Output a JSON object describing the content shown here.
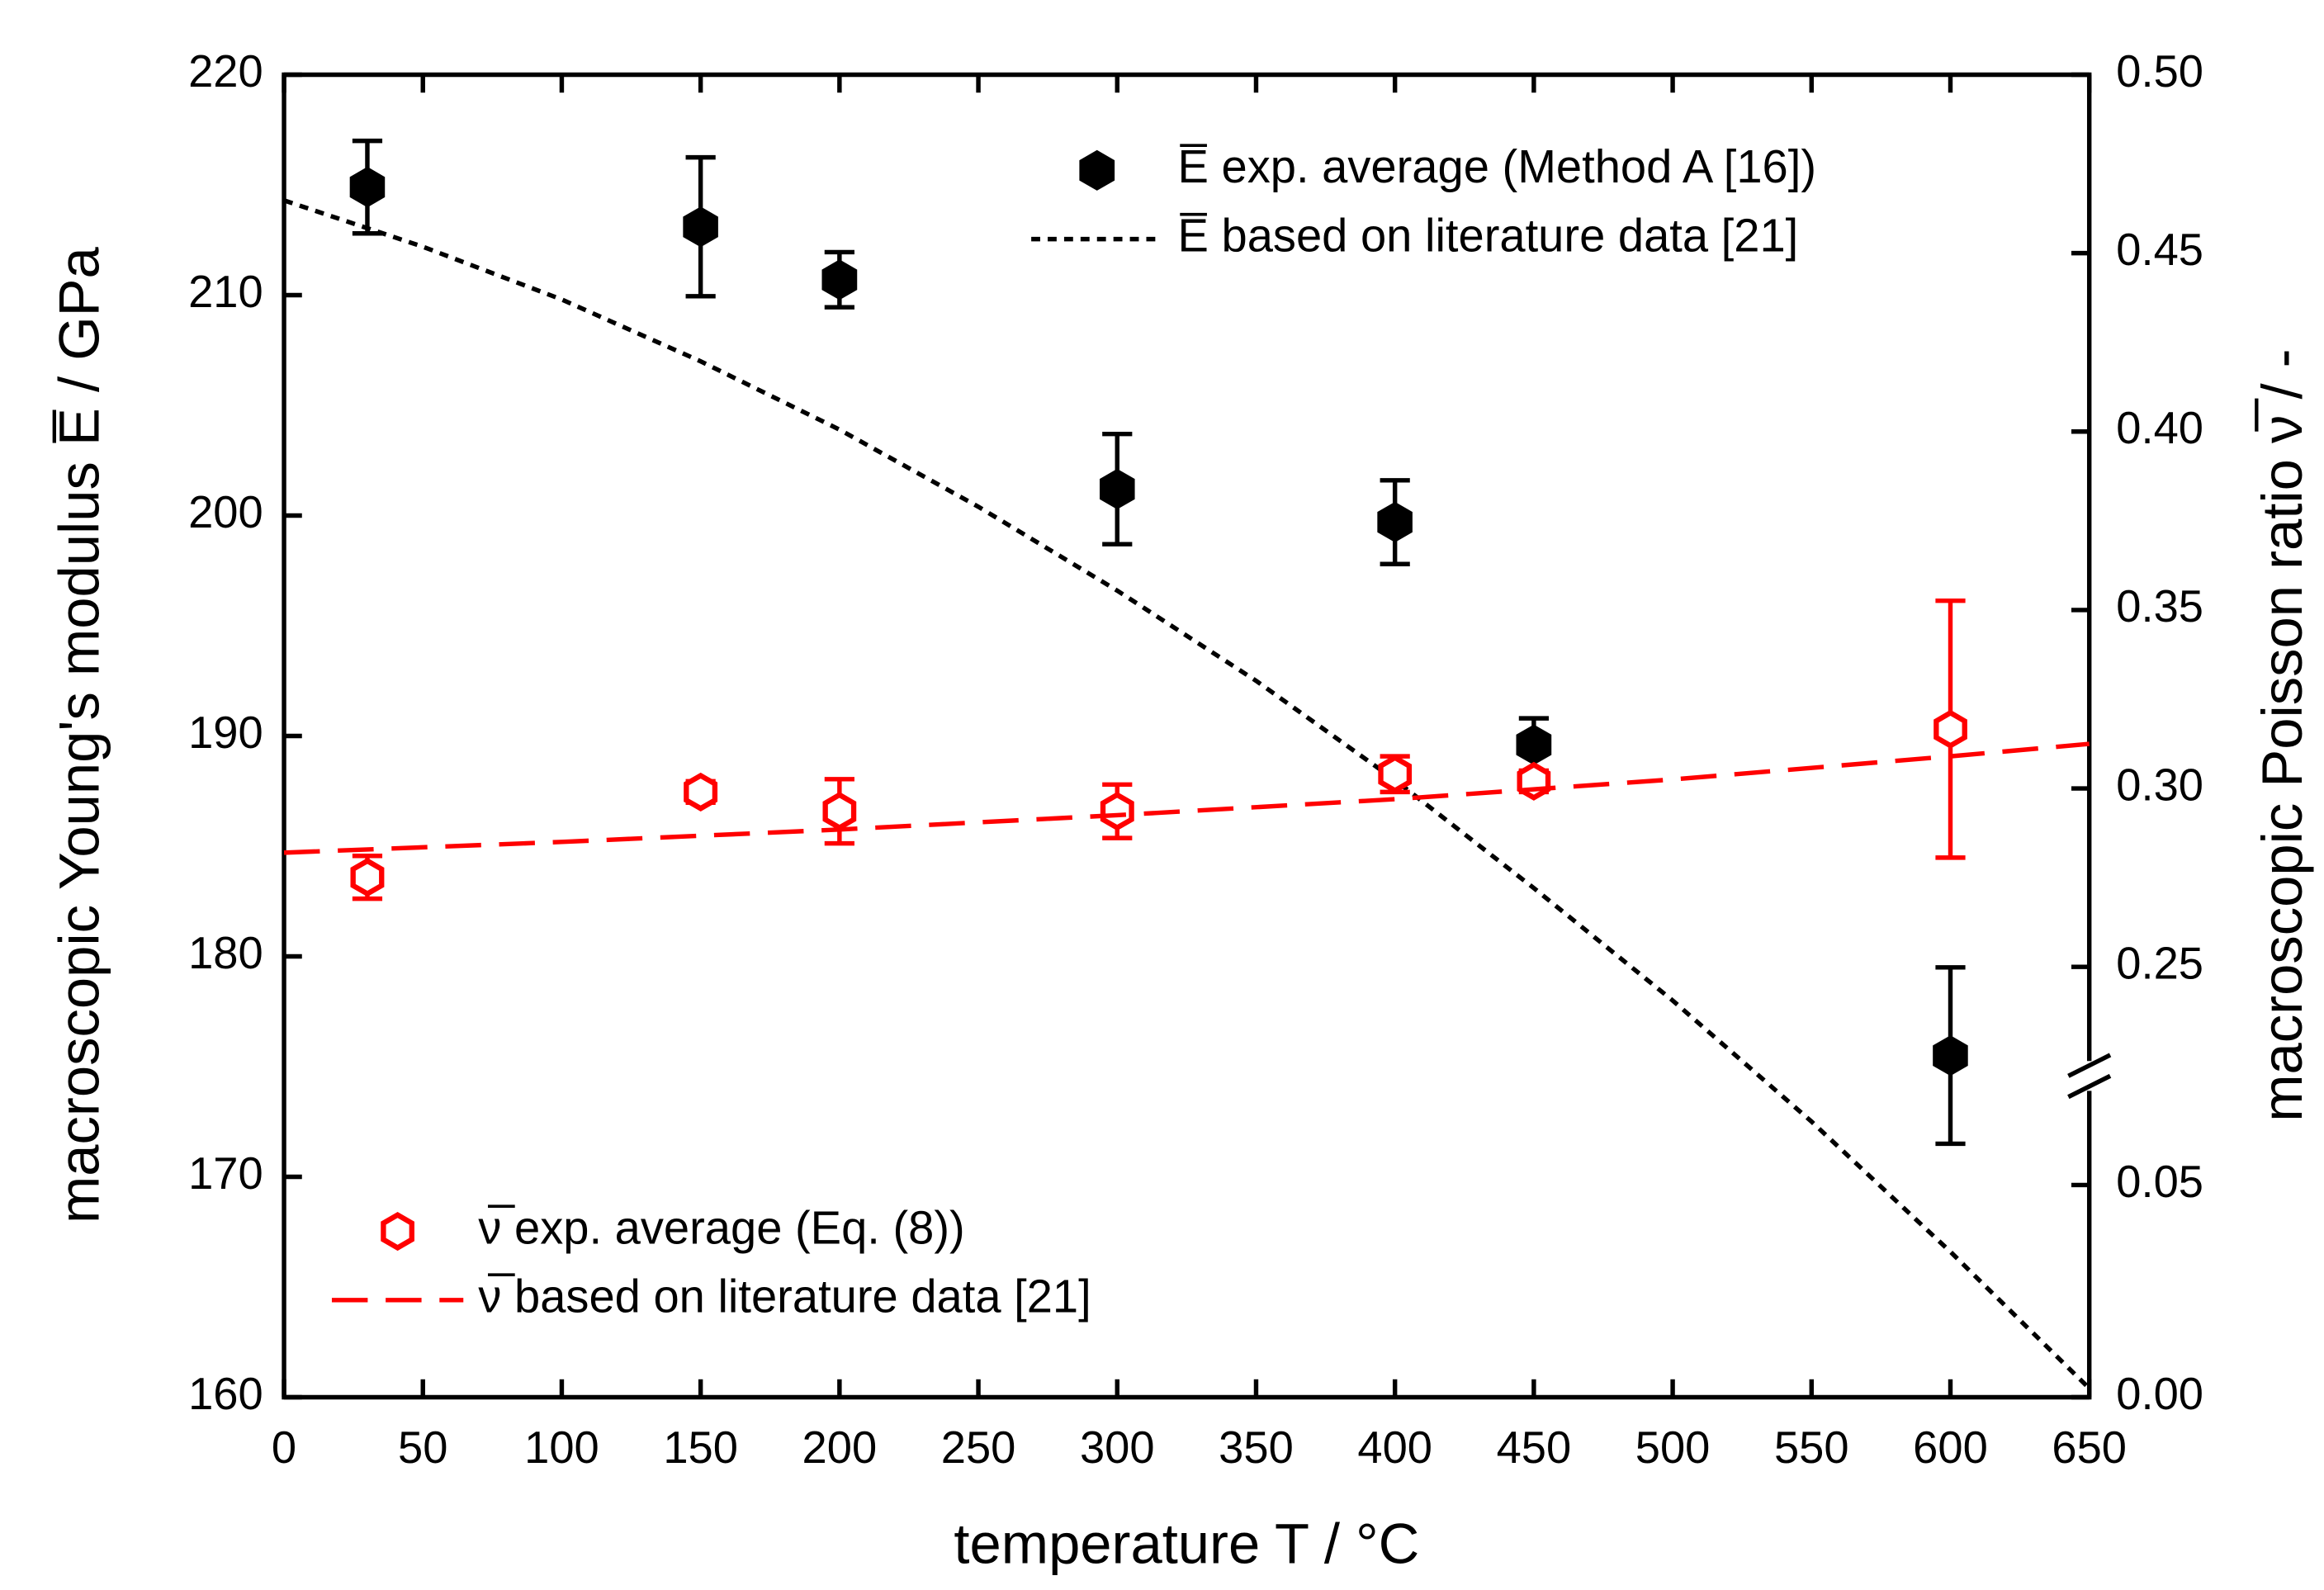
{
  "chart_data": {
    "type": "scatter",
    "xlabel": "temperature T / °C",
    "ylabel": "macroscopic Young's modulus E̅ / GPa",
    "y2label": "macroscopic Poisson ratio ν̅ / -",
    "xlim": [
      0,
      650
    ],
    "xticks": [
      0,
      50,
      100,
      150,
      200,
      250,
      300,
      350,
      400,
      450,
      500,
      550,
      600,
      650
    ],
    "ylim": [
      160,
      220
    ],
    "yticks": [
      160,
      170,
      180,
      190,
      200,
      210,
      220
    ],
    "y2lim": [
      0,
      0.5
    ],
    "y2break": [
      0.05,
      0.25
    ],
    "y2ticks": [
      {
        "value": 0,
        "label": "0.00"
      },
      {
        "value": 0.05,
        "label": "0.05"
      },
      {
        "value": 0.25,
        "label": "0.25"
      },
      {
        "value": 0.3,
        "label": "0.30"
      },
      {
        "value": 0.35,
        "label": "0.35"
      },
      {
        "value": 0.4,
        "label": "0.40"
      },
      {
        "value": 0.45,
        "label": "0.45"
      },
      {
        "value": 0.5,
        "label": "0.50"
      }
    ],
    "series": [
      {
        "name": "E̅ exp. average (Method A [16])",
        "kind": "points",
        "marker": "filled-hexagon",
        "color": "#000000",
        "legend": "upper right",
        "x": [
          30,
          150,
          200,
          300,
          400,
          450,
          600
        ],
        "values": [
          214.9,
          213.1,
          210.7,
          201.2,
          199.7,
          189.6,
          175.5
        ],
        "errors": [
          2.1,
          3.15,
          1.25,
          2.5,
          1.9,
          1.2,
          4.0
        ]
      },
      {
        "name": "E̅ based on literature data [21]",
        "kind": "line",
        "dash": "dotted",
        "color": "#000000",
        "legend": "upper right",
        "x": [
          0,
          50,
          100,
          150,
          200,
          250,
          300,
          350,
          400,
          450,
          500,
          550,
          600,
          650
        ],
        "values": [
          214.3,
          212.2,
          209.8,
          207.0,
          203.9,
          200.4,
          196.6,
          192.5,
          188.0,
          183.1,
          178.0,
          172.5,
          166.6,
          160.4
        ]
      },
      {
        "name": "ν̅ exp. average (Eq. (8))",
        "kind": "points",
        "marker": "open-hexagon",
        "color": "#ff0000",
        "legend": "lower left",
        "axis": "y2",
        "x": [
          30,
          150,
          200,
          300,
          400,
          450,
          600
        ],
        "values": [
          0.2751,
          0.299,
          0.2936,
          0.2936,
          0.304,
          0.302,
          0.3166
        ],
        "errors": [
          0.006,
          0.003,
          0.009,
          0.0075,
          0.005,
          0.003,
          0.036
        ]
      },
      {
        "name": "ν̅ based on literature data [21]",
        "kind": "line",
        "dash": "dashed",
        "color": "#ff0000",
        "legend": "lower left",
        "axis": "y2",
        "x": [
          0,
          100,
          200,
          300,
          400,
          500,
          600,
          650
        ],
        "values": [
          0.282,
          0.285,
          0.2885,
          0.2925,
          0.297,
          0.3025,
          0.309,
          0.3125
        ]
      }
    ]
  }
}
